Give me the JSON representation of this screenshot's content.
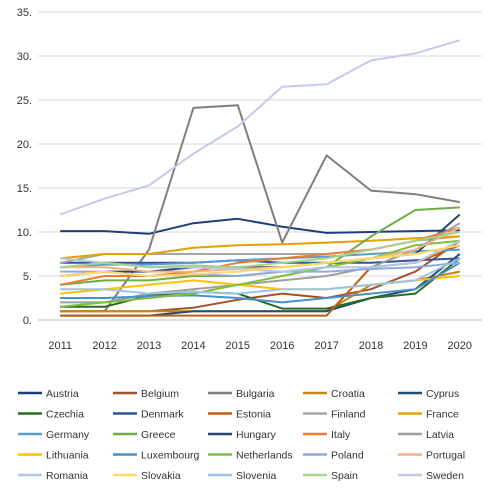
{
  "chart_data": {
    "type": "line",
    "x": [
      "2011",
      "2012",
      "2013",
      "2014",
      "2015",
      "2016",
      "2017",
      "2018",
      "2019",
      "2020"
    ],
    "y_ticks": [
      "0.",
      "5.",
      "10.",
      "15.",
      "20.",
      "25.",
      "30.",
      "35."
    ],
    "ylim": [
      0,
      35
    ],
    "grid": true,
    "legend_position": "bottom",
    "series": [
      {
        "name": "Austria",
        "color": "#1f3f7a",
        "values": [
          10.1,
          10.1,
          9.8,
          11.0,
          11.5,
          10.6,
          9.9,
          10.0,
          10.1,
          10.2
        ]
      },
      {
        "name": "Belgium",
        "color": "#a0522d",
        "values": [
          1.0,
          1.0,
          1.0,
          1.4,
          2.3,
          3.0,
          2.5,
          3.5,
          5.5,
          9.0
        ]
      },
      {
        "name": "Bulgaria",
        "color": "#7f7f7f",
        "values": [
          1.0,
          1.0,
          8.0,
          24.1,
          24.4,
          8.8,
          18.7,
          14.7,
          14.3,
          13.4
        ]
      },
      {
        "name": "Croatia",
        "color": "#c8860d",
        "values": [
          1.0,
          1.0,
          1.0,
          1.0,
          1.0,
          1.0,
          1.0,
          4.0,
          4.5,
          5.5
        ]
      },
      {
        "name": "Cyprus",
        "color": "#1f4e79",
        "values": [
          0.5,
          0.5,
          0.5,
          1.0,
          1.0,
          1.0,
          1.0,
          2.5,
          3.5,
          7.5
        ]
      },
      {
        "name": "Czechia",
        "color": "#2e6b1f",
        "values": [
          1.5,
          1.5,
          2.8,
          3.2,
          3.0,
          1.3,
          1.3,
          2.5,
          3.0,
          7.0
        ]
      },
      {
        "name": "Denmark",
        "color": "#2f5597",
        "values": [
          6.5,
          6.5,
          6.5,
          6.5,
          6.8,
          6.5,
          6.5,
          6.5,
          6.8,
          7.0
        ]
      },
      {
        "name": "Estonia",
        "color": "#c55a11",
        "values": [
          0.5,
          0.5,
          0.5,
          0.5,
          0.5,
          0.5,
          0.5,
          6.0,
          6.5,
          8.5
        ]
      },
      {
        "name": "Finland",
        "color": "#a5a5a5",
        "values": [
          6.5,
          7.5,
          7.5,
          7.5,
          7.5,
          7.5,
          7.5,
          8.0,
          9.0,
          9.5
        ]
      },
      {
        "name": "France",
        "color": "#e5a100",
        "values": [
          7.0,
          7.5,
          7.5,
          8.2,
          8.5,
          8.6,
          8.8,
          9.0,
          9.3,
          9.5
        ]
      },
      {
        "name": "Germany",
        "color": "#5b9bd5",
        "values": [
          6.0,
          6.3,
          6.3,
          6.5,
          6.8,
          7.0,
          7.2,
          7.5,
          7.8,
          8.0
        ]
      },
      {
        "name": "Greece",
        "color": "#70ad47",
        "values": [
          4.0,
          4.5,
          4.5,
          5.0,
          5.0,
          5.5,
          6.0,
          9.5,
          12.5,
          12.8
        ]
      },
      {
        "name": "Hungary",
        "color": "#264478",
        "values": [
          5.0,
          5.5,
          5.5,
          6.0,
          6.0,
          6.0,
          6.5,
          7.0,
          7.5,
          12.0
        ]
      },
      {
        "name": "Italy",
        "color": "#ed7d31",
        "values": [
          4.0,
          5.0,
          5.0,
          5.5,
          6.5,
          7.0,
          7.5,
          8.0,
          9.0,
          10.5
        ]
      },
      {
        "name": "Latvia",
        "color": "#9e9e9e",
        "values": [
          2.0,
          2.0,
          3.0,
          3.5,
          4.0,
          4.5,
          5.0,
          6.0,
          8.0,
          11.0
        ]
      },
      {
        "name": "Lithuania",
        "color": "#ffc000",
        "values": [
          3.0,
          3.5,
          4.0,
          4.5,
          4.0,
          3.5,
          3.5,
          4.0,
          4.5,
          5.0
        ]
      },
      {
        "name": "Luxembourg",
        "color": "#4a90c8",
        "values": [
          2.5,
          2.5,
          2.7,
          2.8,
          2.5,
          2.0,
          2.5,
          3.0,
          3.5,
          6.5
        ]
      },
      {
        "name": "Netherlands",
        "color": "#7fbf3f",
        "values": [
          1.5,
          2.0,
          2.5,
          3.0,
          4.0,
          5.0,
          6.0,
          7.0,
          8.5,
          9.0
        ]
      },
      {
        "name": "Poland",
        "color": "#8faadc",
        "values": [
          5.5,
          5.5,
          5.0,
          5.2,
          5.0,
          5.5,
          5.5,
          5.8,
          6.0,
          6.5
        ]
      },
      {
        "name": "Portugal",
        "color": "#f4b183",
        "values": [
          6.0,
          6.0,
          5.5,
          5.5,
          5.8,
          6.0,
          6.5,
          7.0,
          8.0,
          10.5
        ]
      },
      {
        "name": "Romania",
        "color": "#b4c7e7",
        "values": [
          7.0,
          6.5,
          6.0,
          6.0,
          5.8,
          5.5,
          6.0,
          6.0,
          6.5,
          9.0
        ]
      },
      {
        "name": "Slovakia",
        "color": "#ffd966",
        "values": [
          5.0,
          5.5,
          5.0,
          5.2,
          5.5,
          6.0,
          6.5,
          7.0,
          7.5,
          8.5
        ]
      },
      {
        "name": "Slovenia",
        "color": "#9dc3e6",
        "values": [
          3.5,
          3.5,
          3.0,
          3.2,
          3.0,
          3.5,
          3.5,
          4.0,
          4.5,
          7.0
        ]
      },
      {
        "name": "Spain",
        "color": "#a9d18e",
        "values": [
          6.0,
          6.5,
          6.0,
          6.2,
          6.0,
          6.5,
          7.0,
          8.0,
          9.0,
          10.0
        ]
      },
      {
        "name": "Sweden",
        "color": "#c5cae9",
        "values": [
          12.0,
          13.8,
          15.3,
          18.9,
          22.0,
          26.5,
          26.8,
          29.5,
          30.3,
          31.8
        ]
      }
    ]
  }
}
